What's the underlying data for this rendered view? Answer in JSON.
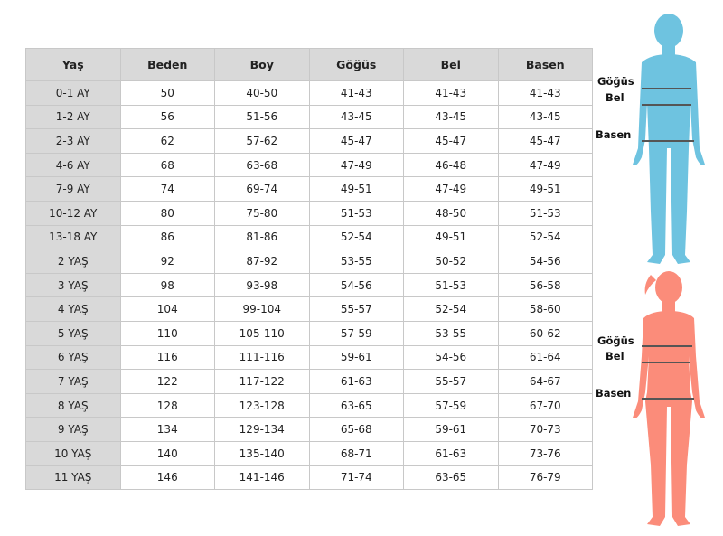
{
  "table": {
    "headers": [
      "Yaş",
      "Beden",
      "Boy",
      "Göğüs",
      "Bel",
      "Basen"
    ],
    "rows": [
      [
        "0-1 AY",
        "50",
        "40-50",
        "41-43",
        "41-43",
        "41-43"
      ],
      [
        "1-2 AY",
        "56",
        "51-56",
        "43-45",
        "43-45",
        "43-45"
      ],
      [
        "2-3 AY",
        "62",
        "57-62",
        "45-47",
        "45-47",
        "45-47"
      ],
      [
        "4-6 AY",
        "68",
        "63-68",
        "47-49",
        "46-48",
        "47-49"
      ],
      [
        "7-9 AY",
        "74",
        "69-74",
        "49-51",
        "47-49",
        "49-51"
      ],
      [
        "10-12 AY",
        "80",
        "75-80",
        "51-53",
        "48-50",
        "51-53"
      ],
      [
        "13-18 AY",
        "86",
        "81-86",
        "52-54",
        "49-51",
        "52-54"
      ],
      [
        "2 YAŞ",
        "92",
        "87-92",
        "53-55",
        "50-52",
        "54-56"
      ],
      [
        "3 YAŞ",
        "98",
        "93-98",
        "54-56",
        "51-53",
        "56-58"
      ],
      [
        "4 YAŞ",
        "104",
        "99-104",
        "55-57",
        "52-54",
        "58-60"
      ],
      [
        "5 YAŞ",
        "110",
        "105-110",
        "57-59",
        "53-55",
        "60-62"
      ],
      [
        "6 YAŞ",
        "116",
        "111-116",
        "59-61",
        "54-56",
        "61-64"
      ],
      [
        "7 YAŞ",
        "122",
        "117-122",
        "61-63",
        "55-57",
        "64-67"
      ],
      [
        "8 YAŞ",
        "128",
        "123-128",
        "63-65",
        "57-59",
        "67-70"
      ],
      [
        "9 YAŞ",
        "134",
        "129-134",
        "65-68",
        "59-61",
        "70-73"
      ],
      [
        "10 YAŞ",
        "140",
        "135-140",
        "68-71",
        "61-63",
        "73-76"
      ],
      [
        "11 YAŞ",
        "146",
        "141-146",
        "71-74",
        "63-65",
        "76-79"
      ]
    ]
  },
  "figures": {
    "boy": {
      "color": "#6ec3e0",
      "labels": [
        "Göğüs",
        "Bel",
        "Basen"
      ]
    },
    "girl": {
      "color": "#fb8c7a",
      "labels": [
        "Göğüs",
        "Bel",
        "Basen"
      ]
    }
  }
}
